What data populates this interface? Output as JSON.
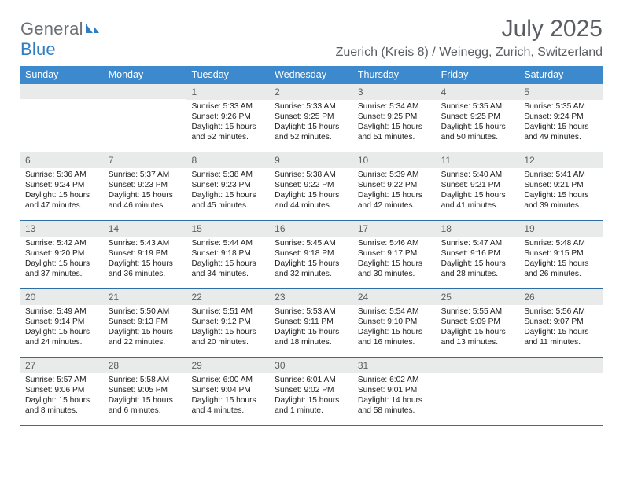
{
  "logo": {
    "word1": "General",
    "word2": "Blue"
  },
  "title": "July 2025",
  "location": "Zuerich (Kreis 8) / Weinegg, Zurich, Switzerland",
  "colors": {
    "header_bg": "#3c8acd",
    "header_text": "#ffffff",
    "daynum_bg": "#e9eaea",
    "daynum_text": "#5a5e62",
    "body_text": "#202020",
    "rule": "#2f6ea3",
    "logo_gray": "#6b7074",
    "logo_blue": "#2f7ec2",
    "title_color": "#5a5e62"
  },
  "day_names": [
    "Sunday",
    "Monday",
    "Tuesday",
    "Wednesday",
    "Thursday",
    "Friday",
    "Saturday"
  ],
  "weeks": [
    [
      {
        "n": "",
        "sunrise": "",
        "sunset": "",
        "daylight": ""
      },
      {
        "n": "",
        "sunrise": "",
        "sunset": "",
        "daylight": ""
      },
      {
        "n": "1",
        "sunrise": "Sunrise: 5:33 AM",
        "sunset": "Sunset: 9:26 PM",
        "daylight": "Daylight: 15 hours and 52 minutes."
      },
      {
        "n": "2",
        "sunrise": "Sunrise: 5:33 AM",
        "sunset": "Sunset: 9:25 PM",
        "daylight": "Daylight: 15 hours and 52 minutes."
      },
      {
        "n": "3",
        "sunrise": "Sunrise: 5:34 AM",
        "sunset": "Sunset: 9:25 PM",
        "daylight": "Daylight: 15 hours and 51 minutes."
      },
      {
        "n": "4",
        "sunrise": "Sunrise: 5:35 AM",
        "sunset": "Sunset: 9:25 PM",
        "daylight": "Daylight: 15 hours and 50 minutes."
      },
      {
        "n": "5",
        "sunrise": "Sunrise: 5:35 AM",
        "sunset": "Sunset: 9:24 PM",
        "daylight": "Daylight: 15 hours and 49 minutes."
      }
    ],
    [
      {
        "n": "6",
        "sunrise": "Sunrise: 5:36 AM",
        "sunset": "Sunset: 9:24 PM",
        "daylight": "Daylight: 15 hours and 47 minutes."
      },
      {
        "n": "7",
        "sunrise": "Sunrise: 5:37 AM",
        "sunset": "Sunset: 9:23 PM",
        "daylight": "Daylight: 15 hours and 46 minutes."
      },
      {
        "n": "8",
        "sunrise": "Sunrise: 5:38 AM",
        "sunset": "Sunset: 9:23 PM",
        "daylight": "Daylight: 15 hours and 45 minutes."
      },
      {
        "n": "9",
        "sunrise": "Sunrise: 5:38 AM",
        "sunset": "Sunset: 9:22 PM",
        "daylight": "Daylight: 15 hours and 44 minutes."
      },
      {
        "n": "10",
        "sunrise": "Sunrise: 5:39 AM",
        "sunset": "Sunset: 9:22 PM",
        "daylight": "Daylight: 15 hours and 42 minutes."
      },
      {
        "n": "11",
        "sunrise": "Sunrise: 5:40 AM",
        "sunset": "Sunset: 9:21 PM",
        "daylight": "Daylight: 15 hours and 41 minutes."
      },
      {
        "n": "12",
        "sunrise": "Sunrise: 5:41 AM",
        "sunset": "Sunset: 9:21 PM",
        "daylight": "Daylight: 15 hours and 39 minutes."
      }
    ],
    [
      {
        "n": "13",
        "sunrise": "Sunrise: 5:42 AM",
        "sunset": "Sunset: 9:20 PM",
        "daylight": "Daylight: 15 hours and 37 minutes."
      },
      {
        "n": "14",
        "sunrise": "Sunrise: 5:43 AM",
        "sunset": "Sunset: 9:19 PM",
        "daylight": "Daylight: 15 hours and 36 minutes."
      },
      {
        "n": "15",
        "sunrise": "Sunrise: 5:44 AM",
        "sunset": "Sunset: 9:18 PM",
        "daylight": "Daylight: 15 hours and 34 minutes."
      },
      {
        "n": "16",
        "sunrise": "Sunrise: 5:45 AM",
        "sunset": "Sunset: 9:18 PM",
        "daylight": "Daylight: 15 hours and 32 minutes."
      },
      {
        "n": "17",
        "sunrise": "Sunrise: 5:46 AM",
        "sunset": "Sunset: 9:17 PM",
        "daylight": "Daylight: 15 hours and 30 minutes."
      },
      {
        "n": "18",
        "sunrise": "Sunrise: 5:47 AM",
        "sunset": "Sunset: 9:16 PM",
        "daylight": "Daylight: 15 hours and 28 minutes."
      },
      {
        "n": "19",
        "sunrise": "Sunrise: 5:48 AM",
        "sunset": "Sunset: 9:15 PM",
        "daylight": "Daylight: 15 hours and 26 minutes."
      }
    ],
    [
      {
        "n": "20",
        "sunrise": "Sunrise: 5:49 AM",
        "sunset": "Sunset: 9:14 PM",
        "daylight": "Daylight: 15 hours and 24 minutes."
      },
      {
        "n": "21",
        "sunrise": "Sunrise: 5:50 AM",
        "sunset": "Sunset: 9:13 PM",
        "daylight": "Daylight: 15 hours and 22 minutes."
      },
      {
        "n": "22",
        "sunrise": "Sunrise: 5:51 AM",
        "sunset": "Sunset: 9:12 PM",
        "daylight": "Daylight: 15 hours and 20 minutes."
      },
      {
        "n": "23",
        "sunrise": "Sunrise: 5:53 AM",
        "sunset": "Sunset: 9:11 PM",
        "daylight": "Daylight: 15 hours and 18 minutes."
      },
      {
        "n": "24",
        "sunrise": "Sunrise: 5:54 AM",
        "sunset": "Sunset: 9:10 PM",
        "daylight": "Daylight: 15 hours and 16 minutes."
      },
      {
        "n": "25",
        "sunrise": "Sunrise: 5:55 AM",
        "sunset": "Sunset: 9:09 PM",
        "daylight": "Daylight: 15 hours and 13 minutes."
      },
      {
        "n": "26",
        "sunrise": "Sunrise: 5:56 AM",
        "sunset": "Sunset: 9:07 PM",
        "daylight": "Daylight: 15 hours and 11 minutes."
      }
    ],
    [
      {
        "n": "27",
        "sunrise": "Sunrise: 5:57 AM",
        "sunset": "Sunset: 9:06 PM",
        "daylight": "Daylight: 15 hours and 8 minutes."
      },
      {
        "n": "28",
        "sunrise": "Sunrise: 5:58 AM",
        "sunset": "Sunset: 9:05 PM",
        "daylight": "Daylight: 15 hours and 6 minutes."
      },
      {
        "n": "29",
        "sunrise": "Sunrise: 6:00 AM",
        "sunset": "Sunset: 9:04 PM",
        "daylight": "Daylight: 15 hours and 4 minutes."
      },
      {
        "n": "30",
        "sunrise": "Sunrise: 6:01 AM",
        "sunset": "Sunset: 9:02 PM",
        "daylight": "Daylight: 15 hours and 1 minute."
      },
      {
        "n": "31",
        "sunrise": "Sunrise: 6:02 AM",
        "sunset": "Sunset: 9:01 PM",
        "daylight": "Daylight: 14 hours and 58 minutes."
      },
      {
        "n": "",
        "sunrise": "",
        "sunset": "",
        "daylight": ""
      },
      {
        "n": "",
        "sunrise": "",
        "sunset": "",
        "daylight": ""
      }
    ]
  ]
}
